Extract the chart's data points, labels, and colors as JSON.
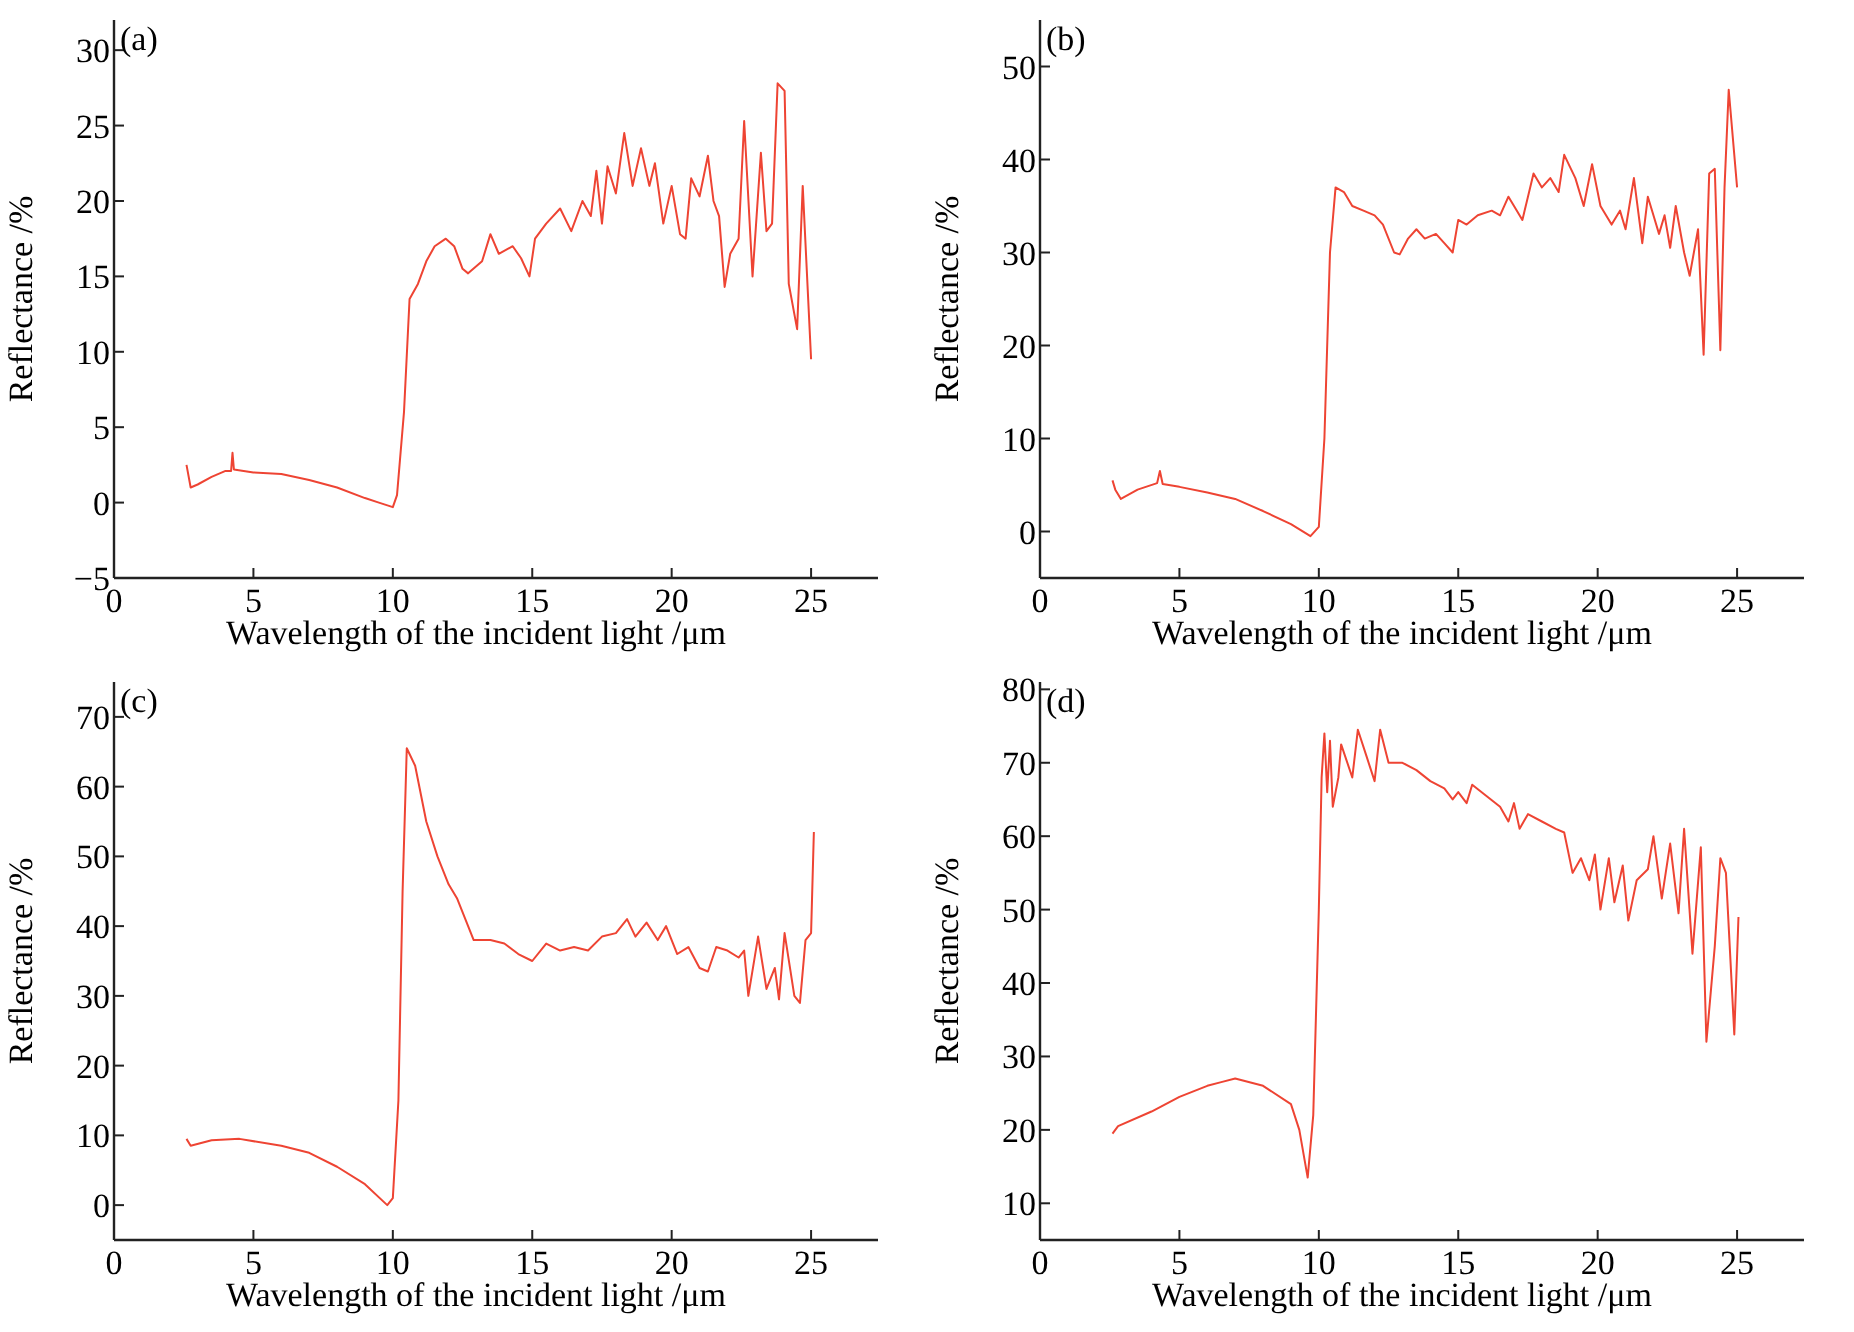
{
  "chart_data": [
    {
      "type": "line",
      "title": "(a)",
      "xlabel": "Wavelength of the incident light /μm",
      "ylabel": "Reflectance /%",
      "xlim": [
        0,
        27.4
      ],
      "xticks": [
        0,
        5,
        10,
        15,
        20,
        25
      ],
      "ylim": [
        -5,
        32
      ],
      "yticks": [
        {
          "value": -5,
          "label": "−5"
        },
        0,
        5,
        10,
        15,
        20,
        25,
        30
      ],
      "grid": false,
      "marker": "none",
      "line_style": "solid",
      "series": [
        {
          "color": "#ee4433",
          "x": [
            2.6,
            2.75,
            3.0,
            3.5,
            4.0,
            4.2,
            4.25,
            4.3,
            5,
            6,
            7,
            8,
            9,
            9.5,
            10,
            10.15,
            10.4,
            10.6,
            10.9,
            11.2,
            11.5,
            11.9,
            12.2,
            12.5,
            12.7,
            13.2,
            13.5,
            13.8,
            14.3,
            14.6,
            14.9,
            15.1,
            15.5,
            16,
            16.4,
            16.8,
            17.1,
            17.3,
            17.5,
            17.7,
            18,
            18.3,
            18.6,
            18.9,
            19.2,
            19.4,
            19.7,
            20,
            20.3,
            20.5,
            20.7,
            21,
            21.3,
            21.5,
            21.7,
            21.9,
            22.1,
            22.4,
            22.6,
            22.9,
            23.2,
            23.4,
            23.6,
            23.8,
            24.05,
            24.2,
            24.5,
            24.7,
            25
          ],
          "values": [
            2.5,
            1.0,
            1.2,
            1.7,
            2.1,
            2.1,
            3.3,
            2.2,
            2.0,
            1.9,
            1.5,
            1.0,
            0.3,
            0.0,
            -0.3,
            0.5,
            6,
            13.5,
            14.5,
            16,
            17,
            17.5,
            17,
            15.5,
            15.2,
            16,
            17.8,
            16.5,
            17,
            16.2,
            15,
            17.5,
            18.5,
            19.5,
            18,
            20,
            19,
            22,
            18.5,
            22.3,
            20.5,
            24.5,
            21,
            23.5,
            21,
            22.5,
            18.5,
            21,
            17.8,
            17.5,
            21.5,
            20.3,
            23,
            20,
            19,
            14.3,
            16.5,
            17.5,
            25.3,
            15,
            23.2,
            18,
            18.5,
            27.8,
            27.3,
            14.5,
            11.5,
            21,
            9.5
          ]
        }
      ]
    },
    {
      "type": "line",
      "title": "(b)",
      "xlabel": "Wavelength of the incident light /μm",
      "ylabel": "Reflectance /%",
      "xlim": [
        0,
        27.4
      ],
      "xticks": [
        0,
        5,
        10,
        15,
        20,
        25
      ],
      "ylim": [
        -5,
        55
      ],
      "yticks": [
        0,
        10,
        20,
        30,
        40,
        50
      ],
      "grid": false,
      "marker": "none",
      "line_style": "solid",
      "series": [
        {
          "color": "#ee4433",
          "x": [
            2.6,
            2.7,
            2.9,
            3.5,
            4.2,
            4.3,
            4.4,
            5,
            6,
            7,
            8,
            9,
            9.7,
            10,
            10.2,
            10.4,
            10.6,
            10.9,
            11.2,
            11.6,
            12,
            12.3,
            12.7,
            12.9,
            13.2,
            13.5,
            13.8,
            14.2,
            14.5,
            14.8,
            15,
            15.3,
            15.7,
            16.2,
            16.5,
            16.8,
            17,
            17.3,
            17.7,
            18,
            18.3,
            18.6,
            18.8,
            19.2,
            19.5,
            19.8,
            20.1,
            20.5,
            20.8,
            21,
            21.3,
            21.6,
            21.8,
            22,
            22.2,
            22.4,
            22.6,
            22.8,
            23.1,
            23.3,
            23.6,
            23.8,
            24.0,
            24.2,
            24.4,
            24.55,
            24.7,
            25
          ],
          "values": [
            5.5,
            4.5,
            3.5,
            4.5,
            5.2,
            6.5,
            5.1,
            4.8,
            4.2,
            3.5,
            2.2,
            0.8,
            -0.5,
            0.5,
            10,
            30,
            37,
            36.5,
            35,
            34.5,
            34,
            33,
            30,
            29.8,
            31.5,
            32.5,
            31.5,
            32,
            31,
            30,
            33.5,
            33,
            34,
            34.5,
            34,
            36,
            35,
            33.5,
            38.5,
            37,
            38,
            36.5,
            40.5,
            38,
            35,
            39.5,
            35,
            33,
            34.5,
            32.5,
            38,
            31,
            36,
            34,
            32,
            34,
            30.5,
            35,
            30,
            27.5,
            32.5,
            19,
            38.5,
            39,
            19.5,
            37,
            47.5,
            37
          ]
        }
      ]
    },
    {
      "type": "line",
      "title": "(c)",
      "xlabel": "Wavelength of the incident light /μm",
      "ylabel": "Reflectance /%",
      "xlim": [
        0,
        27.4
      ],
      "xticks": [
        0,
        5,
        10,
        15,
        20,
        25
      ],
      "ylim": [
        -5,
        75
      ],
      "yticks": [
        0,
        10,
        20,
        30,
        40,
        50,
        60,
        70
      ],
      "grid": false,
      "marker": "none",
      "line_style": "solid",
      "series": [
        {
          "color": "#ee4433",
          "x": [
            2.6,
            2.75,
            3.5,
            4.5,
            6,
            7,
            8,
            9,
            9.8,
            10.0,
            10.2,
            10.35,
            10.5,
            10.8,
            11.2,
            11.6,
            12.0,
            12.3,
            12.6,
            12.9,
            13.5,
            14,
            14.5,
            15,
            15.5,
            16,
            16.5,
            17,
            17.5,
            18,
            18.4,
            18.7,
            19.1,
            19.5,
            19.8,
            20.2,
            20.6,
            21,
            21.3,
            21.6,
            22,
            22.4,
            22.6,
            22.75,
            23.1,
            23.4,
            23.7,
            23.85,
            24.05,
            24.4,
            24.6,
            24.8,
            25,
            25.1
          ],
          "values": [
            9.5,
            8.5,
            9.3,
            9.5,
            8.5,
            7.5,
            5.5,
            3,
            0,
            1,
            15,
            45,
            65.5,
            63,
            55,
            50,
            46,
            44,
            41,
            38,
            38,
            37.5,
            36,
            35,
            37.5,
            36.5,
            37,
            36.5,
            38.5,
            39,
            41,
            38.5,
            40.5,
            38,
            40,
            36,
            37,
            34,
            33.5,
            37,
            36.5,
            35.5,
            36.5,
            30,
            38.5,
            31,
            34,
            29.5,
            39,
            30,
            29,
            38,
            39,
            53.5
          ]
        }
      ]
    },
    {
      "type": "line",
      "title": "(d)",
      "xlabel": "Wavelength of the incident light /μm",
      "ylabel": "Reflectance /%",
      "xlim": [
        0,
        27.4
      ],
      "xticks": [
        0,
        5,
        10,
        15,
        20,
        25
      ],
      "ylim": [
        5,
        81
      ],
      "yticks": [
        10,
        20,
        30,
        40,
        50,
        60,
        70,
        80
      ],
      "grid": false,
      "marker": "none",
      "line_style": "solid",
      "series": [
        {
          "color": "#ee4433",
          "x": [
            2.6,
            2.8,
            4,
            5,
            6,
            6.5,
            7,
            8,
            9,
            9.3,
            9.6,
            9.8,
            10.0,
            10.1,
            10.2,
            10.3,
            10.4,
            10.5,
            10.7,
            10.8,
            11.2,
            11.4,
            11.7,
            12.0,
            12.2,
            12.5,
            13,
            13.5,
            14,
            14.5,
            14.8,
            15.0,
            15.3,
            15.5,
            16,
            16.5,
            16.8,
            17,
            17.2,
            17.5,
            18,
            18.5,
            18.8,
            19.1,
            19.4,
            19.7,
            19.9,
            20.1,
            20.4,
            20.6,
            20.9,
            21.1,
            21.4,
            21.8,
            22,
            22.3,
            22.6,
            22.9,
            23.1,
            23.4,
            23.7,
            23.9,
            24.2,
            24.4,
            24.6,
            24.9,
            25.05
          ],
          "values": [
            19.5,
            20.5,
            22.5,
            24.5,
            26,
            26.5,
            27,
            26,
            23.5,
            20,
            13.5,
            22,
            50,
            68,
            74,
            66,
            73,
            64,
            68,
            72.5,
            68,
            74.5,
            71,
            67.5,
            74.5,
            70,
            70,
            69,
            67.5,
            66.5,
            65,
            66,
            64.5,
            67,
            65.5,
            64,
            62,
            64.5,
            61,
            63,
            62,
            61,
            60.5,
            55,
            57,
            54,
            57.5,
            50,
            57,
            51,
            56,
            48.5,
            54,
            55.5,
            60,
            51.5,
            59,
            49.5,
            61,
            44,
            58.5,
            32,
            45,
            57,
            55,
            33,
            49
          ]
        }
      ]
    }
  ]
}
